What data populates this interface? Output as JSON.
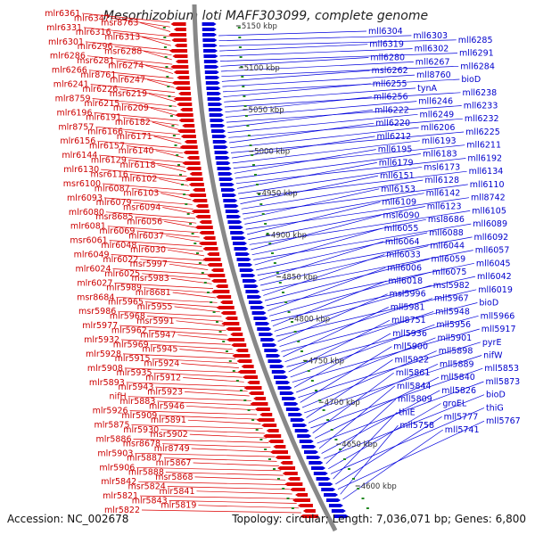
{
  "title": "Mesorhizobium loti MAFF303099, complete genome",
  "footer": {
    "accession": "Accession: NC_002678",
    "topology": "Topology: circular; Length: 7,036,071 bp; Genes: 6,800"
  },
  "colors": {
    "reverse_strand": "#dd0000",
    "forward_strand": "#0000dd",
    "backbone": "#888888",
    "ruler": "#228822"
  },
  "ticks": [
    "5150 kbp",
    "5100 kbp",
    "5050 kbp",
    "5000 kbp",
    "4950 kbp",
    "4900 kbp",
    "4850 kbp",
    "4800 kbp",
    "4750 kbp",
    "4700 kbp",
    "4650 kbp",
    "4600 kbp"
  ],
  "reverse_genes": [
    "mlr6361",
    "mlr6347",
    "msr8763",
    "mlr6331",
    "mlr6316",
    "mlr6313",
    "mlr6301",
    "mlr6296",
    "msr6288",
    "mlr6286",
    "msr6281",
    "mlr6274",
    "mlr6266",
    "mlr8761",
    "mlr6247",
    "mlr6241",
    "mlr6226",
    "msr6219",
    "mlr8759",
    "mlr6215",
    "mlr6209",
    "mlr6196",
    "mlr6191",
    "mlr6182",
    "mlr8757",
    "mlr6166",
    "mlr6171",
    "mlr6156",
    "mlr6157",
    "mlr6140",
    "mlr6144",
    "mlr6129",
    "mlr6118",
    "mlr6130",
    "msr6116",
    "mlr6102",
    "msr6100",
    "mlr6087",
    "mlr6103",
    "mlr6093",
    "mlr6079",
    "msr6094",
    "mlr6080",
    "msr8685",
    "mlr6056",
    "mlr6081",
    "mlr6069",
    "mlr6037",
    "msr6061",
    "mlr6048",
    "mlr6030",
    "mlr6049",
    "mlr6022",
    "msr5997",
    "mlr6024",
    "mlr6025",
    "msr5983",
    "mlr6027",
    "mlr5989",
    "mlr8681",
    "msr8684",
    "mlr5965",
    "mlr5955",
    "msr5986",
    "mlr5968",
    "msr5991",
    "mlr5977",
    "mlr5962",
    "mlr5947",
    "mlr5932",
    "mlr5969",
    "mlr5945",
    "mlr5928",
    "mlr5915",
    "mlr5924",
    "mlr5908",
    "mlr5935",
    "mlr5912",
    "mlr5893",
    "mlr5943",
    "mlr5923",
    "nifH",
    "mlr5883",
    "mlr5946",
    "mlr5926",
    "mlr5909",
    "mlr5891",
    "mlr5875",
    "mlr5930",
    "msr5902",
    "mlr5886",
    "msr8678",
    "mlr8749",
    "mlr5903",
    "mlr5887",
    "mlr5867",
    "mlr5906",
    "mlr5888",
    "msr5868",
    "mlr5842",
    "msr5824",
    "mlr5841",
    "mlr5821",
    "mlr5843",
    "mlr5819",
    "mlr5822"
  ],
  "forward_genes": [
    "mll6304",
    "mll6303",
    "mll6285",
    "mll6319",
    "mll6302",
    "mll6291",
    "mll6280",
    "mll6267",
    "mll6284",
    "msl6262",
    "mll8760",
    "bioD",
    "mll6255",
    "tynA",
    "mll6238",
    "mll6256",
    "mll6246",
    "mll6233",
    "mll6222",
    "mll6249",
    "mll6232",
    "mll6220",
    "mll6206",
    "mll6225",
    "mll6212",
    "mll6193",
    "mll6211",
    "mll6195",
    "mll6183",
    "mll6192",
    "mll6179",
    "msl6173",
    "mll6134",
    "mll6151",
    "mll6128",
    "mll6110",
    "mll6153",
    "mll6142",
    "mll8742",
    "mll6109",
    "mll6123",
    "mll6105",
    "msl6090",
    "msl8686",
    "mll6089",
    "mll6055",
    "mll6088",
    "mll6092",
    "mll6064",
    "mll6044",
    "mll6057",
    "mll6033",
    "mll6059",
    "mll6045",
    "mll6006",
    "mll6075",
    "mll6042",
    "mll6018",
    "msl5982",
    "mll6019",
    "msl5996",
    "mll5967",
    "bioD",
    "mll5981",
    "mll5948",
    "mll5966",
    "mll8751",
    "mll5956",
    "mll5917",
    "mll5936",
    "mll5901",
    "pyrE",
    "mll5900",
    "mll5898",
    "nifW",
    "mll5922",
    "mll5889",
    "mll5853",
    "mll5861",
    "mll5840",
    "mll5873",
    "mll5844",
    "mll5826",
    "bioD",
    "mll5809",
    "groEL",
    "thiG",
    "thiE",
    "mll5777",
    "mll5767",
    "mll5758",
    "mll5741"
  ]
}
